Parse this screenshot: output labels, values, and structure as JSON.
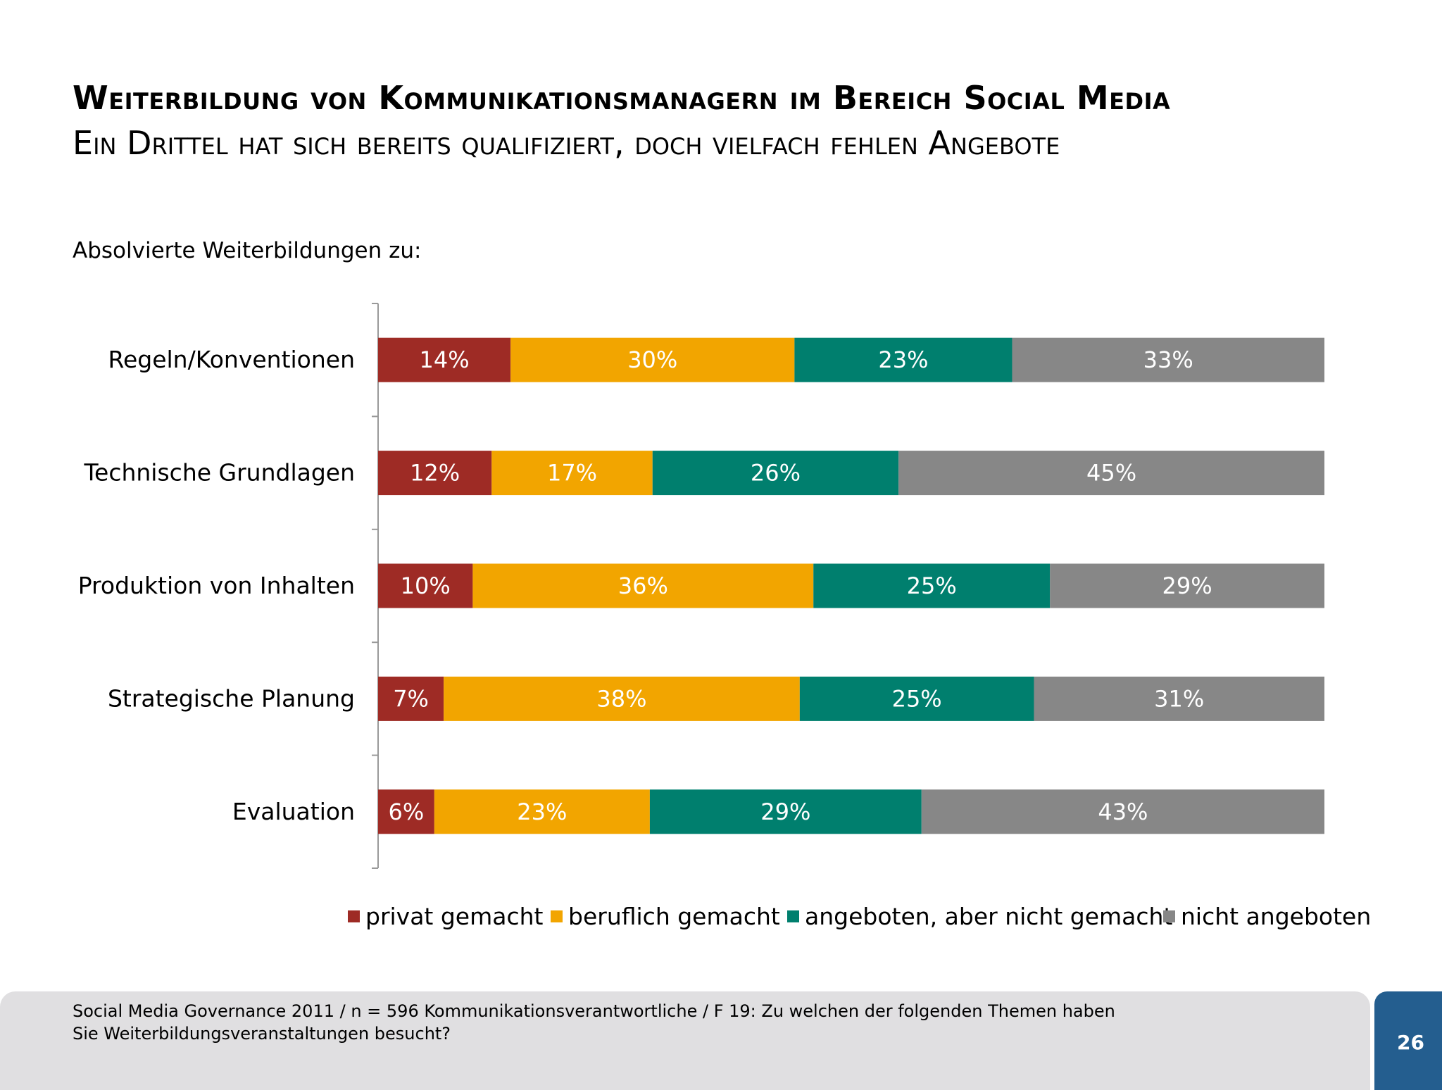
{
  "header": {
    "title": "Weiterbildung von Kommunikationsmanagern im Bereich Social Media",
    "subtitle": "Ein Drittel hat sich bereits qualifiziert, doch vielfach fehlen Angebote"
  },
  "chart_data": {
    "type": "bar",
    "orientation": "horizontal",
    "stacked": "100%",
    "title": "Absolvierte Weiterbildungen zu:",
    "categories": [
      "Regeln/Konventionen",
      "Technische Grundlagen",
      "Produktion von Inhalten",
      "Strategische Planung",
      "Evaluation"
    ],
    "series": [
      {
        "name": "privat gemacht",
        "color": "#9e2b25",
        "values": [
          14,
          12,
          10,
          7,
          6
        ]
      },
      {
        "name": "beruflich gemacht",
        "color": "#f2a500",
        "values": [
          30,
          17,
          36,
          38,
          23
        ]
      },
      {
        "name": "angeboten, aber nicht gemacht",
        "color": "#007f6e",
        "values": [
          23,
          26,
          25,
          25,
          29
        ]
      },
      {
        "name": "nicht angeboten",
        "color": "#878787",
        "values": [
          33,
          45,
          29,
          31,
          43
        ]
      }
    ],
    "value_suffix": "%",
    "legend_position": "bottom",
    "grid": false
  },
  "footer": {
    "source": "Social Media Governance 2011 / n = 596 Kommunikationsverantwortliche / F 19: Zu welchen der folgenden Themen haben Sie Weiterbildungsveranstaltungen besucht?",
    "page_number": "26",
    "page_color": "#245e8f"
  }
}
